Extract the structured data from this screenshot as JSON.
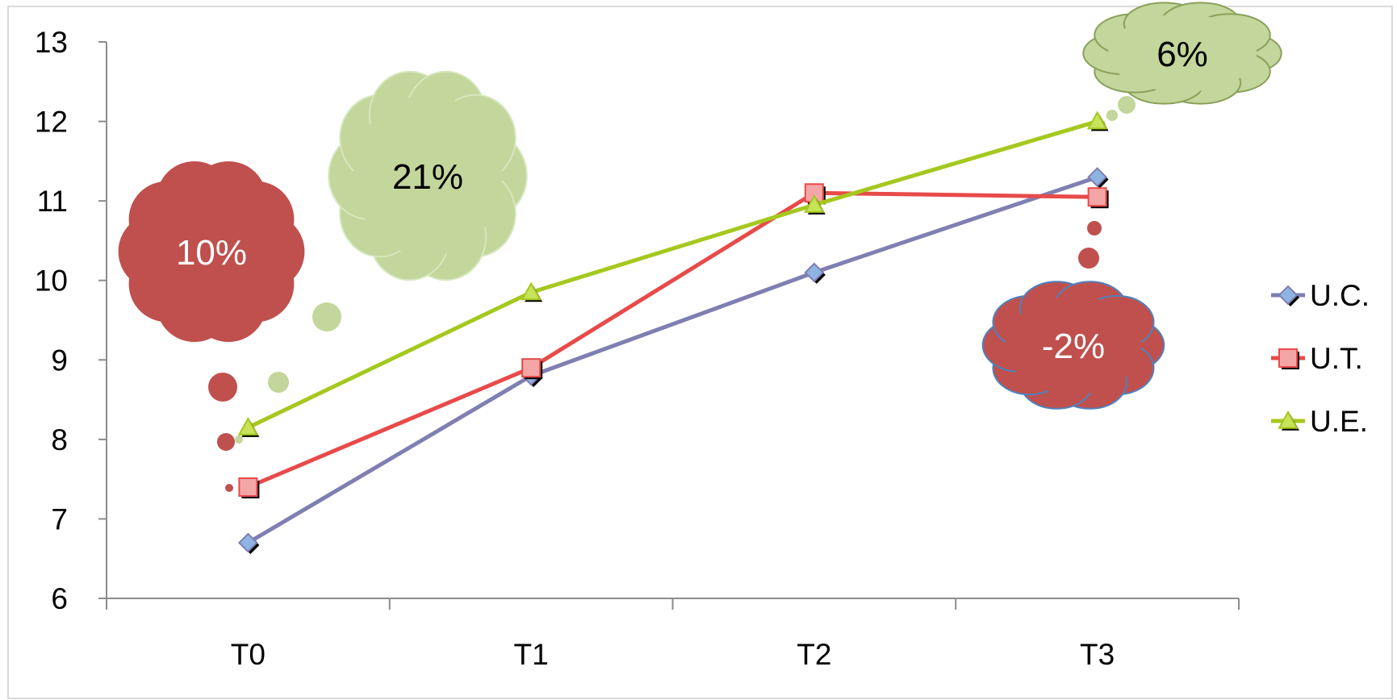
{
  "chart_data": {
    "type": "line",
    "categories": [
      "T0",
      "T1",
      "T2",
      "T3"
    ],
    "ylim": [
      6,
      13
    ],
    "yticks": [
      6,
      7,
      8,
      9,
      10,
      11,
      12,
      13
    ],
    "grid": false,
    "legend_position": "right",
    "series": [
      {
        "name": "U.C.",
        "values": [
          6.7,
          8.8,
          10.1,
          11.3
        ],
        "color": "#7f7fb2",
        "marker": "diamond",
        "marker_color": "#8eb4e3"
      },
      {
        "name": "U.T.",
        "values": [
          7.4,
          8.9,
          11.1,
          11.05
        ],
        "color": "#e84a4a",
        "marker": "square",
        "marker_color": "#f4a6a6"
      },
      {
        "name": "U.E.",
        "values": [
          8.15,
          9.85,
          10.95,
          12.0
        ],
        "color": "#a5c81e",
        "marker": "triangle",
        "marker_color": "#c6e35a"
      }
    ],
    "annotations": [
      {
        "text": "10%",
        "fill": "#c0504d",
        "text_color": "#ffffff"
      },
      {
        "text": "21%",
        "fill": "#c3d69b",
        "text_color": "#000000"
      },
      {
        "text": "6%",
        "fill": "#c3d69b",
        "text_color": "#000000"
      },
      {
        "text": "-2%",
        "fill": "#c0504d",
        "text_color": "#ffffff"
      }
    ]
  }
}
